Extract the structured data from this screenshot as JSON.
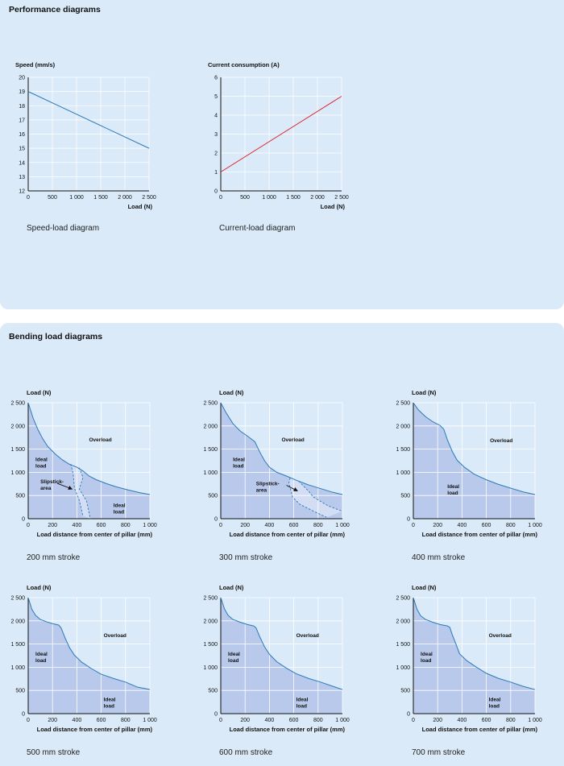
{
  "performance": {
    "title": "Performance diagrams",
    "speed": {
      "caption": "Speed-load diagram",
      "chart_data": {
        "type": "line",
        "ylabel": "Speed (mm/s)",
        "xlabel": "Load (N)",
        "x_ticks": [
          "0",
          "500",
          "1 000",
          "1 500",
          "2 000",
          "2 500"
        ],
        "y_ticks": [
          "12",
          "13",
          "14",
          "15",
          "16",
          "17",
          "18",
          "19",
          "20"
        ],
        "xlim": [
          0,
          2500
        ],
        "ylim": [
          12,
          20
        ],
        "grid": true,
        "series": [
          {
            "color": "#2a7ab8",
            "x": [
              0,
              2500
            ],
            "y": [
              19,
              15
            ]
          }
        ]
      }
    },
    "current": {
      "caption": "Current-load diagram",
      "chart_data": {
        "type": "line",
        "ylabel": "Current consumption (A)",
        "xlabel": "Load (N)",
        "x_ticks": [
          "0",
          "500",
          "1 000",
          "1 500",
          "2 000",
          "2 500"
        ],
        "y_ticks": [
          "0",
          "1",
          "2",
          "3",
          "4",
          "5",
          "6"
        ],
        "xlim": [
          0,
          2500
        ],
        "ylim": [
          0,
          6
        ],
        "grid": true,
        "series": [
          {
            "color": "#e0202a",
            "x": [
              0,
              2500
            ],
            "y": [
              1,
              5
            ]
          }
        ]
      }
    }
  },
  "bending": {
    "title": "Bending load diagrams",
    "common": {
      "ylabel": "Load (N)",
      "xlabel": "Load distance from center of pillar (mm)",
      "x_ticks": [
        "0",
        "200",
        "400",
        "600",
        "800",
        "1 000"
      ],
      "y_ticks": [
        "0",
        "500",
        "1 000",
        "1 500",
        "2 000",
        "2 500"
      ],
      "xlim": [
        0,
        1000
      ],
      "ylim": [
        0,
        2500
      ],
      "overload_label": "Overload",
      "ideal_label": [
        "Ideal",
        "load"
      ],
      "slip_label": [
        "Slipstick-",
        "area"
      ],
      "fill_color": "#b8c9ec",
      "line_color": "#2a7ab8"
    },
    "charts": [
      {
        "caption": "200 mm stroke",
        "chart_data": {
          "type": "area",
          "curve": [
            [
              0,
              2500
            ],
            [
              40,
              2170
            ],
            [
              80,
              1920
            ],
            [
              120,
              1720
            ],
            [
              160,
              1560
            ],
            [
              220,
              1400
            ],
            [
              280,
              1270
            ],
            [
              340,
              1170
            ],
            [
              400,
              1110
            ],
            [
              450,
              1030
            ],
            [
              500,
              920
            ],
            [
              560,
              840
            ],
            [
              640,
              760
            ],
            [
              720,
              690
            ],
            [
              820,
              620
            ],
            [
              920,
              560
            ],
            [
              1000,
              520
            ]
          ],
          "slip": [
            [
              [
                350,
                1180
              ],
              [
                370,
                960
              ],
              [
                380,
                660
              ],
              [
                420,
                400
              ],
              [
                450,
                60
              ]
            ],
            [
              [
                420,
                1100
              ],
              [
                450,
                890
              ],
              [
                420,
                640
              ],
              [
                480,
                380
              ],
              [
                510,
                0
              ]
            ]
          ]
        }
      },
      {
        "caption": "300 mm stroke",
        "chart_data": {
          "type": "area",
          "curve": [
            [
              0,
              2500
            ],
            [
              40,
              2300
            ],
            [
              100,
              2050
            ],
            [
              160,
              1890
            ],
            [
              220,
              1780
            ],
            [
              280,
              1660
            ],
            [
              320,
              1440
            ],
            [
              360,
              1250
            ],
            [
              400,
              1110
            ],
            [
              460,
              1000
            ],
            [
              540,
              920
            ],
            [
              620,
              830
            ],
            [
              720,
              730
            ],
            [
              820,
              650
            ],
            [
              920,
              570
            ],
            [
              1000,
              520
            ]
          ],
          "slip": [
            [
              [
                570,
                880
              ],
              [
                560,
                770
              ],
              [
                590,
                470
              ],
              [
                650,
                310
              ],
              [
                780,
                140
              ],
              [
                870,
                30
              ]
            ],
            [
              [
                640,
                810
              ],
              [
                720,
                600
              ],
              [
                760,
                470
              ],
              [
                880,
                280
              ],
              [
                1000,
                160
              ]
            ]
          ]
        }
      },
      {
        "caption": "400 mm stroke",
        "chart_data": {
          "type": "area",
          "curve": [
            [
              0,
              2500
            ],
            [
              40,
              2350
            ],
            [
              100,
              2200
            ],
            [
              160,
              2090
            ],
            [
              220,
              2010
            ],
            [
              250,
              1930
            ],
            [
              280,
              1700
            ],
            [
              320,
              1450
            ],
            [
              360,
              1260
            ],
            [
              420,
              1110
            ],
            [
              500,
              960
            ],
            [
              600,
              840
            ],
            [
              700,
              740
            ],
            [
              800,
              660
            ],
            [
              900,
              580
            ],
            [
              1000,
              520
            ]
          ],
          "slip": []
        }
      },
      {
        "caption": "500 mm stroke",
        "chart_data": {
          "type": "area",
          "curve": [
            [
              0,
              2500
            ],
            [
              30,
              2250
            ],
            [
              60,
              2120
            ],
            [
              100,
              2030
            ],
            [
              150,
              1980
            ],
            [
              200,
              1940
            ],
            [
              250,
              1910
            ],
            [
              270,
              1850
            ],
            [
              300,
              1650
            ],
            [
              340,
              1420
            ],
            [
              380,
              1260
            ],
            [
              440,
              1110
            ],
            [
              520,
              970
            ],
            [
              600,
              850
            ],
            [
              700,
              760
            ],
            [
              800,
              680
            ],
            [
              900,
              570
            ],
            [
              1000,
              520
            ]
          ],
          "slip": []
        }
      },
      {
        "caption": "600 mm stroke",
        "chart_data": {
          "type": "area",
          "curve": [
            [
              0,
              2500
            ],
            [
              30,
              2260
            ],
            [
              60,
              2120
            ],
            [
              100,
              2030
            ],
            [
              160,
              1970
            ],
            [
              220,
              1920
            ],
            [
              270,
              1890
            ],
            [
              290,
              1850
            ],
            [
              320,
              1660
            ],
            [
              360,
              1440
            ],
            [
              400,
              1280
            ],
            [
              460,
              1120
            ],
            [
              540,
              980
            ],
            [
              620,
              860
            ],
            [
              720,
              760
            ],
            [
              820,
              680
            ],
            [
              920,
              590
            ],
            [
              1000,
              520
            ]
          ],
          "slip": []
        }
      },
      {
        "caption": "700 mm stroke",
        "chart_data": {
          "type": "area",
          "curve": [
            [
              0,
              2500
            ],
            [
              30,
              2250
            ],
            [
              60,
              2110
            ],
            [
              100,
              2030
            ],
            [
              160,
              1970
            ],
            [
              220,
              1920
            ],
            [
              280,
              1890
            ],
            [
              300,
              1860
            ],
            [
              320,
              1700
            ],
            [
              350,
              1500
            ],
            [
              380,
              1290
            ],
            [
              440,
              1140
            ],
            [
              520,
              1000
            ],
            [
              600,
              870
            ],
            [
              700,
              760
            ],
            [
              800,
              680
            ],
            [
              900,
              590
            ],
            [
              1000,
              520
            ]
          ],
          "slip": []
        }
      }
    ]
  }
}
